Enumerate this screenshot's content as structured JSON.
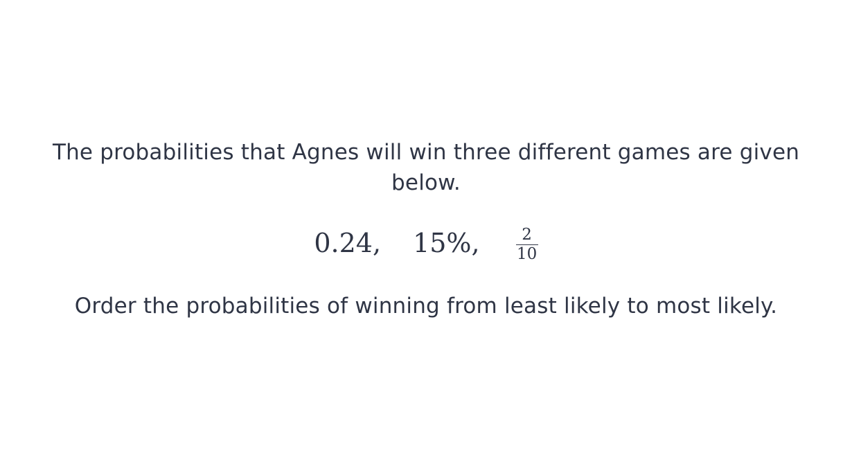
{
  "question": {
    "intro": "The probabilities that Agnes will win three different games are given below.",
    "values": {
      "first": "0.24,",
      "second": "15%,",
      "third": {
        "numerator": "2",
        "denominator": "10"
      }
    },
    "prompt": "Order the probabilities of winning from least likely to most likely."
  }
}
